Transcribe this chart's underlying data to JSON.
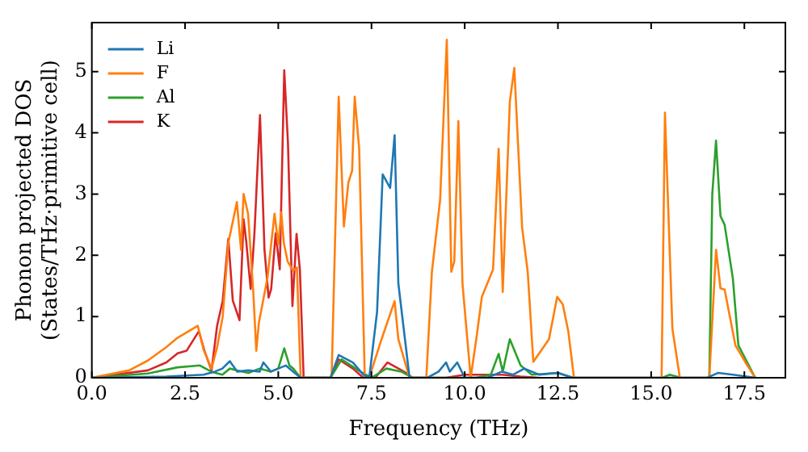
{
  "chart_data": {
    "type": "line",
    "xlabel": "Frequency (THz)",
    "ylabel": "Phonon projected DOS\n(States/THz·primitive cell)",
    "xlim": [
      0,
      18.6
    ],
    "ylim": [
      0,
      5.8
    ],
    "xticks": [
      {
        "value": 0,
        "label": "0.0"
      },
      2.5,
      {
        "value": 5,
        "label": "5.0"
      },
      7.5,
      {
        "value": 10,
        "label": "10.0"
      },
      12.5,
      {
        "value": 15,
        "label": "15.0"
      },
      17.5
    ],
    "yticks": [
      0,
      1,
      2,
      3,
      4,
      5
    ],
    "grid": false,
    "legend": "top left",
    "marker": "none",
    "line_style": "solid",
    "series": [
      {
        "name": "Li",
        "color": "#1f77b4",
        "x": [
          0,
          2.0,
          3.0,
          3.3,
          3.5,
          3.7,
          3.9,
          4.2,
          4.5,
          4.6,
          4.8,
          5.0,
          5.2,
          5.4,
          5.6,
          6.4,
          6.62,
          7.0,
          7.28,
          7.44,
          7.65,
          7.8,
          8.0,
          8.12,
          8.22,
          8.52,
          9.0,
          9.3,
          9.5,
          9.6,
          9.8,
          10.0,
          10.6,
          11.0,
          11.3,
          11.6,
          12.0,
          12.5,
          12.9,
          16.5,
          16.8,
          17.2,
          17.8
        ],
        "values": [
          0,
          0.02,
          0.05,
          0.1,
          0.15,
          0.27,
          0.1,
          0.12,
          0.1,
          0.25,
          0.1,
          0.15,
          0.2,
          0.1,
          0,
          0,
          0.37,
          0.25,
          0.05,
          0,
          1.08,
          3.32,
          3.1,
          3.96,
          1.54,
          0,
          0,
          0.1,
          0.25,
          0.1,
          0.25,
          0,
          0,
          0.1,
          0.05,
          0.15,
          0.05,
          0.08,
          0,
          0,
          0.08,
          0.05,
          0
        ]
      },
      {
        "name": "F",
        "color": "#ff7f0e",
        "x": [
          0,
          1.0,
          1.5,
          2.0,
          2.27,
          2.84,
          2.9,
          3.0,
          3.21,
          3.36,
          3.51,
          3.66,
          3.89,
          4.0,
          4.07,
          4.19,
          4.33,
          4.41,
          4.48,
          4.71,
          4.9,
          5.0,
          5.08,
          5.15,
          5.25,
          5.4,
          5.5,
          5.6,
          6.43,
          6.62,
          6.76,
          6.88,
          6.98,
          7.05,
          7.17,
          7.32,
          7.44,
          7.77,
          8.12,
          8.22,
          8.52,
          8.97,
          9.12,
          9.34,
          9.52,
          9.64,
          9.72,
          9.83,
          9.94,
          10.16,
          10.31,
          10.46,
          10.76,
          10.91,
          11.02,
          11.21,
          11.33,
          11.54,
          11.69,
          11.84,
          12.26,
          12.48,
          12.63,
          12.78,
          12.93,
          15.28,
          15.37,
          15.57,
          15.77,
          16.56,
          16.74,
          16.86,
          16.97,
          17.26,
          17.56,
          17.79
        ],
        "values": [
          0,
          0.12,
          0.28,
          0.5,
          0.64,
          0.85,
          0.7,
          0.45,
          0.15,
          0.5,
          1.0,
          2.2,
          2.87,
          2.09,
          3.0,
          2.68,
          1.4,
          0.44,
          0.9,
          1.63,
          2.68,
          2.18,
          2.7,
          2.2,
          1.9,
          1.75,
          1.8,
          0,
          0,
          4.59,
          2.47,
          3.19,
          3.38,
          4.59,
          3.74,
          0,
          0,
          0.63,
          1.25,
          0.63,
          0,
          0,
          1.73,
          2.9,
          5.52,
          1.73,
          1.9,
          4.19,
          1.54,
          0,
          0.63,
          1.32,
          1.77,
          3.74,
          1.4,
          4.51,
          5.06,
          2.45,
          1.73,
          0.26,
          0.63,
          1.32,
          1.2,
          0.75,
          0,
          0,
          4.33,
          0.8,
          0,
          0,
          2.09,
          1.46,
          1.44,
          0.53,
          0.22,
          0
        ]
      },
      {
        "name": "Al",
        "color": "#2ca02c",
        "x": [
          0,
          1.5,
          2.3,
          2.9,
          3.2,
          3.5,
          3.7,
          3.9,
          4.2,
          4.5,
          4.8,
          5.0,
          5.16,
          5.3,
          5.4,
          5.6,
          6.4,
          6.7,
          7.2,
          7.5,
          7.9,
          8.3,
          8.6,
          9.0,
          10.3,
          10.7,
          10.91,
          11.02,
          11.21,
          11.5,
          11.8,
          12.5,
          12.9,
          15.3,
          15.5,
          15.8,
          16.56,
          16.64,
          16.74,
          16.86,
          16.97,
          17.19,
          17.34,
          17.79
        ],
        "values": [
          0,
          0.07,
          0.17,
          0.2,
          0.1,
          0.05,
          0.15,
          0.12,
          0.08,
          0.15,
          0.1,
          0.15,
          0.48,
          0.2,
          0.15,
          0,
          0,
          0.3,
          0.1,
          0,
          0.15,
          0.1,
          0,
          0,
          0,
          0.05,
          0.39,
          0.1,
          0.63,
          0.2,
          0.05,
          0.08,
          0,
          0,
          0.05,
          0,
          0,
          3.0,
          3.87,
          2.64,
          2.5,
          1.63,
          0.53,
          0
        ]
      },
      {
        "name": "K",
        "color": "#d62728",
        "x": [
          0,
          1.5,
          2.0,
          2.3,
          2.54,
          2.87,
          3.02,
          3.21,
          3.36,
          3.51,
          3.66,
          3.78,
          3.96,
          4.07,
          4.14,
          4.26,
          4.36,
          4.51,
          4.63,
          4.74,
          4.81,
          4.93,
          5.04,
          5.16,
          5.26,
          5.38,
          5.49,
          5.58,
          5.68,
          6.4,
          6.62,
          7.0,
          7.28,
          7.6,
          7.93,
          8.37,
          8.6,
          9.5,
          10.0,
          11.0,
          11.5,
          12.0
        ],
        "values": [
          0,
          0.12,
          0.25,
          0.4,
          0.44,
          0.76,
          0.44,
          0.12,
          0.85,
          1.26,
          2.27,
          1.26,
          0.94,
          2.59,
          2.23,
          1.45,
          2.35,
          4.29,
          2.09,
          1.31,
          1.45,
          2.36,
          1.77,
          5.02,
          3.83,
          1.17,
          2.35,
          1.76,
          0,
          0,
          0.3,
          0.15,
          0,
          0,
          0.25,
          0.1,
          0,
          0,
          0.05,
          0.05,
          0.02,
          0
        ]
      }
    ]
  }
}
